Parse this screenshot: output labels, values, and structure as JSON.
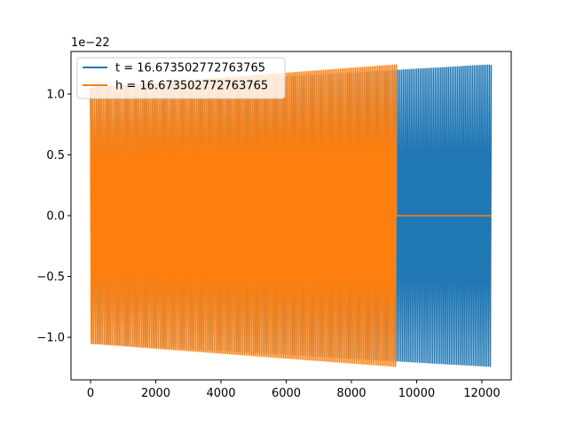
{
  "chart_data": {
    "type": "line",
    "title": "",
    "xlabel": "",
    "ylabel": "",
    "y_offset_label": "1e−22",
    "xlim": [
      -600,
      12900
    ],
    "ylim": [
      -1.35,
      1.35
    ],
    "xticks": [
      0,
      2000,
      4000,
      6000,
      8000,
      10000,
      12000
    ],
    "xtick_labels": [
      "0",
      "2000",
      "4000",
      "6000",
      "8000",
      "10000",
      "12000"
    ],
    "yticks": [
      -1.0,
      -0.5,
      0.0,
      0.5,
      1.0
    ],
    "ytick_labels": [
      "−1.0",
      "−0.5",
      "0.0",
      "0.5",
      "1.0"
    ],
    "grid": false,
    "legend_position": "top-left",
    "series": [
      {
        "name": "t = 16.673502772763765",
        "color": "#1f77b4",
        "x_range": [
          0,
          12288
        ],
        "envelope_start": 1.05,
        "envelope_end": 1.24,
        "cycles": 215
      },
      {
        "name": "h = 16.673502772763765",
        "color": "#ff7f0e",
        "x_range": [
          0,
          9380
        ],
        "envelope_start": 1.05,
        "envelope_end": 1.24,
        "cycles": 164,
        "zero_after": 9380,
        "zero_until": 12288
      }
    ]
  }
}
